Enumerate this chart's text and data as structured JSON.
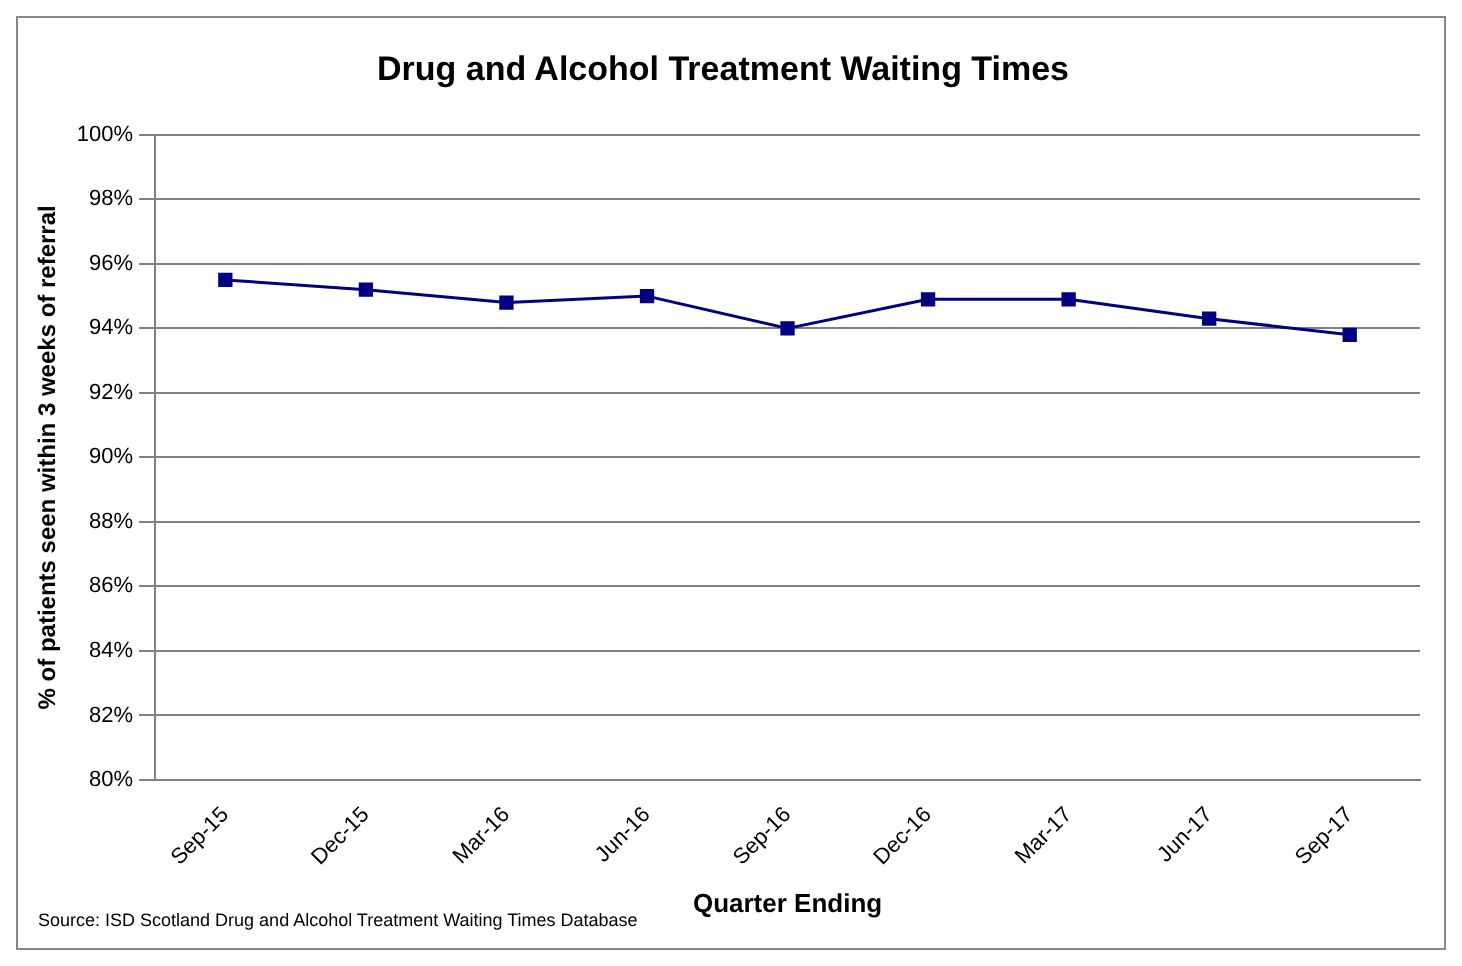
{
  "chart_data": {
    "type": "line",
    "title": "Drug and Alcohol Treatment Waiting Times",
    "xlabel": "Quarter Ending",
    "ylabel": "% of patients seen within 3 weeks of referral",
    "categories": [
      "Sep-15",
      "Dec-15",
      "Mar-16",
      "Jun-16",
      "Sep-16",
      "Dec-16",
      "Mar-17",
      "Jun-17",
      "Sep-17"
    ],
    "series": [
      {
        "color": "#000080",
        "values": [
          95.5,
          95.2,
          94.8,
          95.0,
          94.0,
          94.9,
          94.9,
          94.3,
          93.8
        ]
      }
    ],
    "ylim": [
      80,
      100
    ],
    "yticks": [
      {
        "value": 80,
        "label": "80%"
      },
      {
        "value": 82,
        "label": "82%"
      },
      {
        "value": 84,
        "label": "84%"
      },
      {
        "value": 86,
        "label": "86%"
      },
      {
        "value": 88,
        "label": "88%"
      },
      {
        "value": 90,
        "label": "90%"
      },
      {
        "value": 92,
        "label": "92%"
      },
      {
        "value": 94,
        "label": "94%"
      },
      {
        "value": 96,
        "label": "96%"
      },
      {
        "value": 98,
        "label": "98%"
      },
      {
        "value": 100,
        "label": "100%"
      }
    ],
    "grid": "y",
    "marker": "square",
    "line_style": "solid",
    "legend": false,
    "annotations": [
      "Source: ISD Scotland Drug and Alcohol Treatment Waiting Times Database"
    ]
  }
}
